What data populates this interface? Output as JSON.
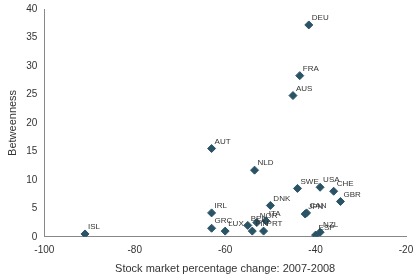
{
  "chart_data": {
    "type": "scatter",
    "x_label": "Stock market percentage change: 2007-2008",
    "y_label": "Betweenness",
    "labels": [
      "ISL",
      "GRC",
      "IRL",
      "LUX",
      "AUT",
      "NLD",
      "BEL",
      "NOR",
      "FIN",
      "ITA",
      "PRT",
      "DNK",
      "AUS",
      "FRA",
      "DEU",
      "SWE",
      "CAN",
      "JPN",
      "USA",
      "ESP",
      "NZL",
      "CHE",
      "GBR"
    ],
    "x": [
      -91,
      -63,
      -63,
      -60,
      -63,
      -53.5,
      -55,
      -53,
      -54,
      -51,
      -51.5,
      -50,
      -45,
      -43.5,
      -41.5,
      -44,
      -42,
      -42.3,
      -39,
      -40,
      -39,
      -36,
      -34.5
    ],
    "values": [
      0.5,
      1.5,
      4.2,
      1,
      15.5,
      11.7,
      2,
      2.5,
      1,
      2.8,
      1,
      5.5,
      24.8,
      28.3,
      37.2,
      8.5,
      4.2,
      4,
      8.7,
      0.3,
      0.8,
      8,
      6.2
    ],
    "color": "#2a5466",
    "marker": "diamond",
    "xlim": [
      -100,
      -20
    ],
    "xticks": [
      -100,
      -80,
      -60,
      -40,
      -20
    ],
    "ylim": [
      0,
      40
    ],
    "yticks": [
      0,
      5,
      10,
      15,
      20,
      25,
      30,
      35,
      40
    ],
    "grid": false,
    "data_labels": true
  }
}
